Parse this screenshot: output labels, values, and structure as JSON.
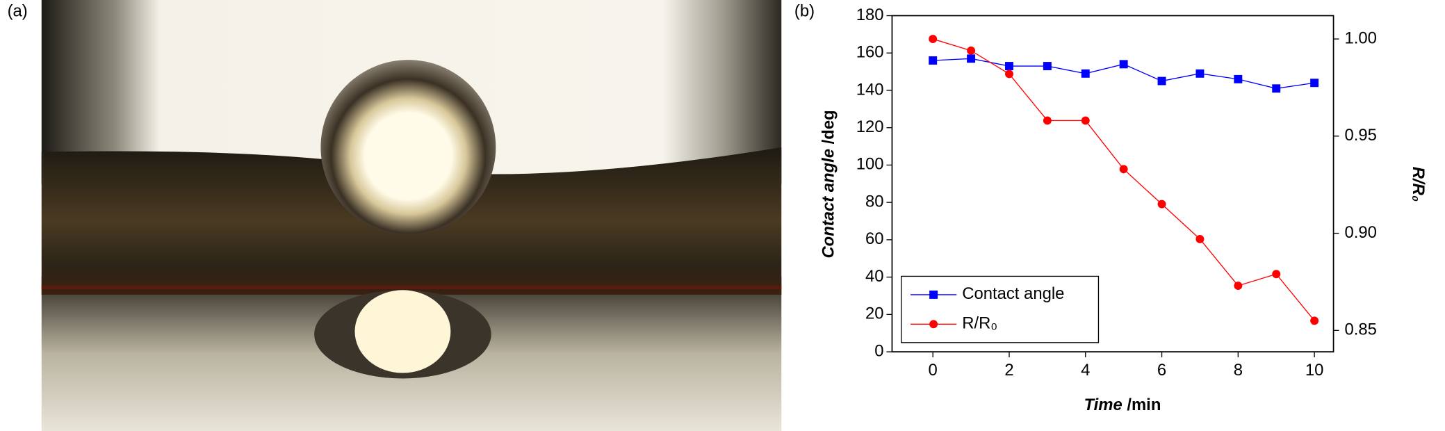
{
  "photo": {
    "label": "(a)"
  },
  "chart_data": {
    "type": "line",
    "panel_label": "(b)",
    "xlabel": [
      "Time",
      "/min"
    ],
    "ylabel": [
      "Contact angle",
      "/deg"
    ],
    "y2label": "R/R₀",
    "x": [
      0,
      1,
      2,
      3,
      4,
      5,
      6,
      7,
      8,
      9,
      10
    ],
    "xlim": [
      -1.07,
      10.5
    ],
    "xticks": [
      0,
      2,
      4,
      6,
      8,
      10
    ],
    "ylim": [
      0,
      180
    ],
    "yticks": [
      0,
      20,
      40,
      60,
      80,
      100,
      120,
      140,
      160,
      180
    ],
    "y2lim": [
      0.839,
      1.012
    ],
    "y2ticks": [
      0.85,
      {
        "value": 0.9,
        "label": "0.90"
      },
      0.95,
      {
        "value": 1.0,
        "label": "1.00"
      }
    ],
    "legend": "lower left",
    "series": [
      {
        "name": "Contact angle",
        "color": "#0000ff",
        "marker": "square",
        "values": [
          156,
          157,
          153,
          153,
          149,
          154,
          145,
          149,
          146,
          141,
          144
        ]
      },
      {
        "name": "R/R₀",
        "color": "#ff0000",
        "marker": "circle",
        "axis": "y2",
        "values": [
          1.0,
          0.994,
          0.982,
          0.958,
          0.958,
          0.933,
          0.915,
          0.897,
          0.873,
          0.879,
          0.855
        ]
      }
    ]
  }
}
